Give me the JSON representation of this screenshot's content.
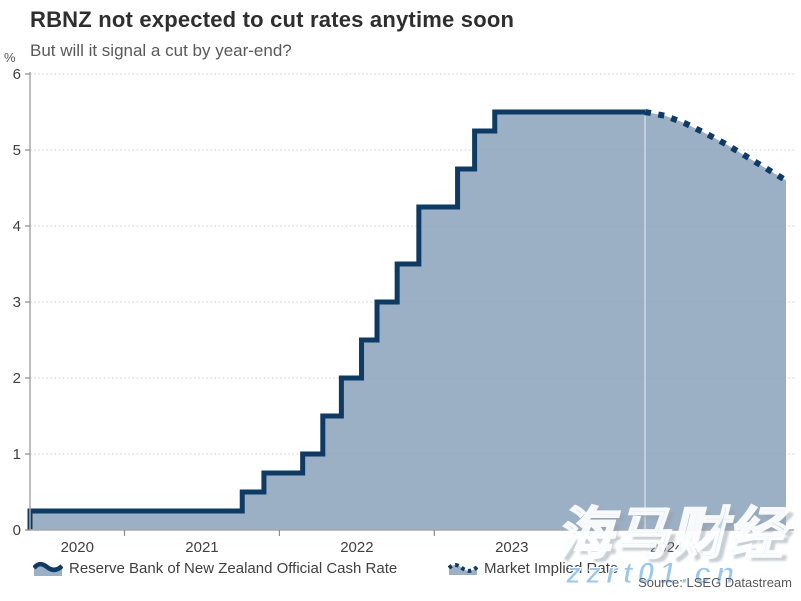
{
  "header": {
    "title": "RBNZ not expected to cut rates anytime soon",
    "subtitle": "But will it signal a cut by year-end?"
  },
  "chart_data": {
    "type": "area",
    "title": "RBNZ not expected to cut rates anytime soon",
    "subtitle": "But will it signal a cut by year-end?",
    "ylabel": "%",
    "xlabel": "",
    "ylim": [
      0,
      6
    ],
    "yticks": [
      0,
      1,
      2,
      3,
      4,
      5,
      6
    ],
    "xtick_years": [
      "2020",
      "2021",
      "2022",
      "2023",
      "2024"
    ],
    "x_range": [
      2020.39,
      2025.27
    ],
    "forecast_start_x": 2024.36,
    "grid": "horizontal-dotted",
    "legend_position": "bottom",
    "series": [
      {
        "name": "Reserve Bank of New Zealand Official Cash Rate",
        "type": "step-area",
        "color": "#0e3a63",
        "fill": "#9bafc5",
        "points": [
          [
            2020.39,
            0.25
          ],
          [
            2021.76,
            0.5
          ],
          [
            2021.9,
            0.75
          ],
          [
            2022.15,
            1.0
          ],
          [
            2022.28,
            1.5
          ],
          [
            2022.4,
            2.0
          ],
          [
            2022.53,
            2.5
          ],
          [
            2022.63,
            3.0
          ],
          [
            2022.76,
            3.5
          ],
          [
            2022.9,
            4.25
          ],
          [
            2023.15,
            4.75
          ],
          [
            2023.26,
            5.25
          ],
          [
            2023.39,
            5.5
          ]
        ]
      },
      {
        "name": "Market Implied Rate",
        "type": "dotted-line",
        "color": "#0e3a63",
        "points": [
          [
            2024.36,
            5.5
          ],
          [
            2024.49,
            5.45
          ],
          [
            2024.62,
            5.35
          ],
          [
            2024.75,
            5.22
          ],
          [
            2024.88,
            5.08
          ],
          [
            2025.01,
            4.92
          ],
          [
            2025.14,
            4.76
          ],
          [
            2025.27,
            4.6
          ]
        ]
      }
    ],
    "source": "Source: LSEG Datastream"
  },
  "watermark": {
    "cn_text": "海马财经",
    "url_text": "zzrt01.cn"
  },
  "colors": {
    "line": "#0e3a63",
    "fill": "#9bafc5",
    "grid": "#98a3b0",
    "axis": "#a9a9a9",
    "tick": "#8c8c8c",
    "tick_label": "#404040",
    "title": "#2e2e2e",
    "muted_text": "#595959"
  }
}
